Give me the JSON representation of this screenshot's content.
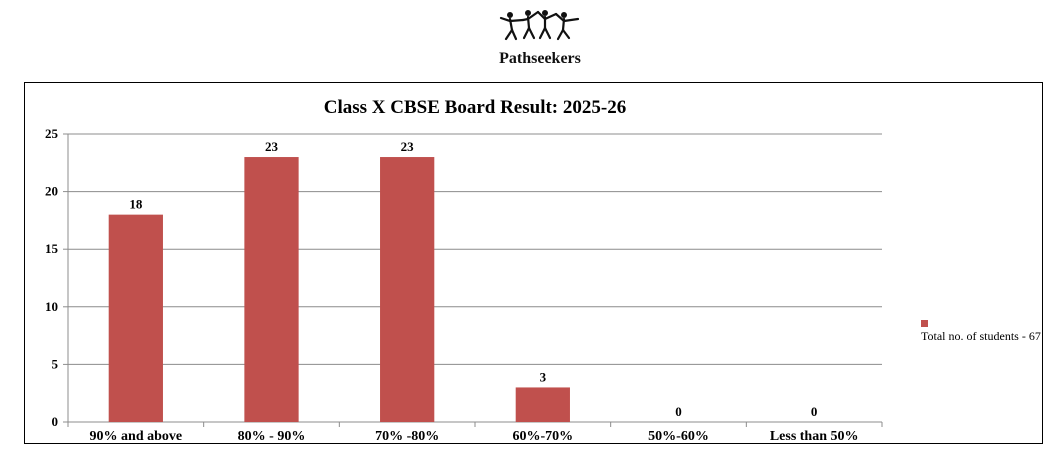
{
  "brand": {
    "name": "Pathseekers",
    "logo_icon": "people-holding-hands-logo"
  },
  "chart_data": {
    "type": "bar",
    "title": "Class X CBSE Board Result: 2025-26",
    "categories": [
      "90% and above",
      "80% - 90%",
      "70% -80%",
      "60%-70%",
      "50%-60%",
      "Less than 50%"
    ],
    "series": [
      {
        "name": "Total no. of students - 67",
        "values": [
          18,
          23,
          23,
          3,
          0,
          0
        ],
        "color": "#c0504d"
      }
    ],
    "xlabel": "",
    "ylabel": "",
    "ylim": [
      0,
      25
    ],
    "yticks": [
      0,
      5,
      10,
      15,
      20,
      25
    ],
    "grid": true,
    "legend": "right"
  }
}
